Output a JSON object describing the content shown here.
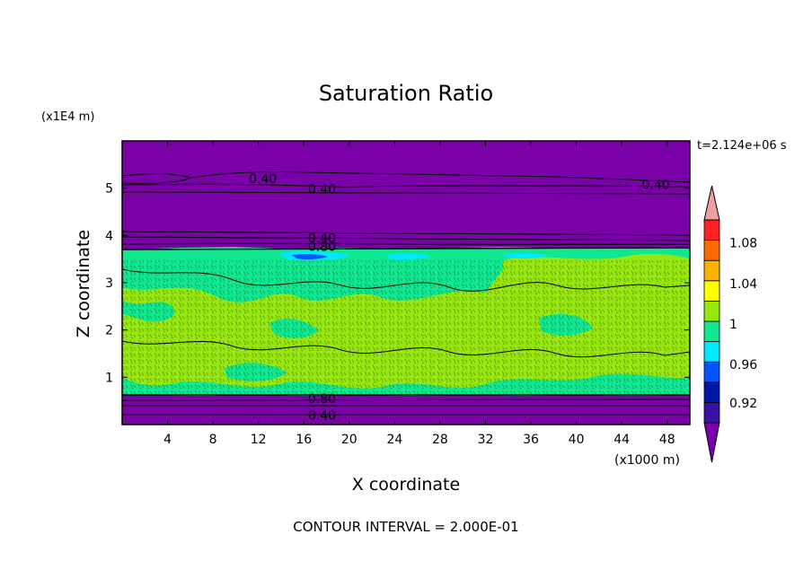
{
  "chart_data": {
    "type": "heatmap",
    "title": "Saturation Ratio",
    "time_label": "t=2.124e+06 s",
    "xlabel": "X coordinate",
    "ylabel": "Z coordinate",
    "x_unit": "(x1000 m)",
    "y_unit": "(x1E4 m)",
    "xlim": [
      0,
      50
    ],
    "ylim": [
      0,
      6
    ],
    "x_ticks": [
      4,
      8,
      12,
      16,
      20,
      24,
      28,
      32,
      36,
      40,
      44,
      48
    ],
    "y_ticks": [
      1,
      2,
      3,
      4,
      5
    ],
    "footer": "CONTOUR INTERVAL = 2.000E-01",
    "contour_labels": [
      {
        "text": "0.40",
        "x": 12.4,
        "z": 5.2
      },
      {
        "text": "0.40",
        "x": 17.6,
        "z": 4.98
      },
      {
        "text": "0.40",
        "x": 47.0,
        "z": 5.08
      },
      {
        "text": "0.40",
        "x": 17.6,
        "z": 3.95
      },
      {
        "text": "0.80",
        "x": 17.6,
        "z": 3.77
      },
      {
        "text": "0.80",
        "x": 17.6,
        "z": 0.55
      },
      {
        "text": "0.40",
        "x": 17.6,
        "z": 0.2
      }
    ],
    "colorbar": {
      "labels": [
        "1.08",
        "1.04",
        "1",
        "0.96",
        "0.92"
      ],
      "levels": [
        0.92,
        0.94,
        0.96,
        0.98,
        1.0,
        1.02,
        1.04,
        1.06,
        1.08,
        1.1
      ],
      "colors": [
        "#7a00a8",
        "#3a10a8",
        "#0018a8",
        "#0055ff",
        "#00e8ff",
        "#10e890",
        "#96e610",
        "#ffff00",
        "#ffb000",
        "#ff6a00",
        "#ff2020",
        "#f0a0a0"
      ]
    }
  }
}
